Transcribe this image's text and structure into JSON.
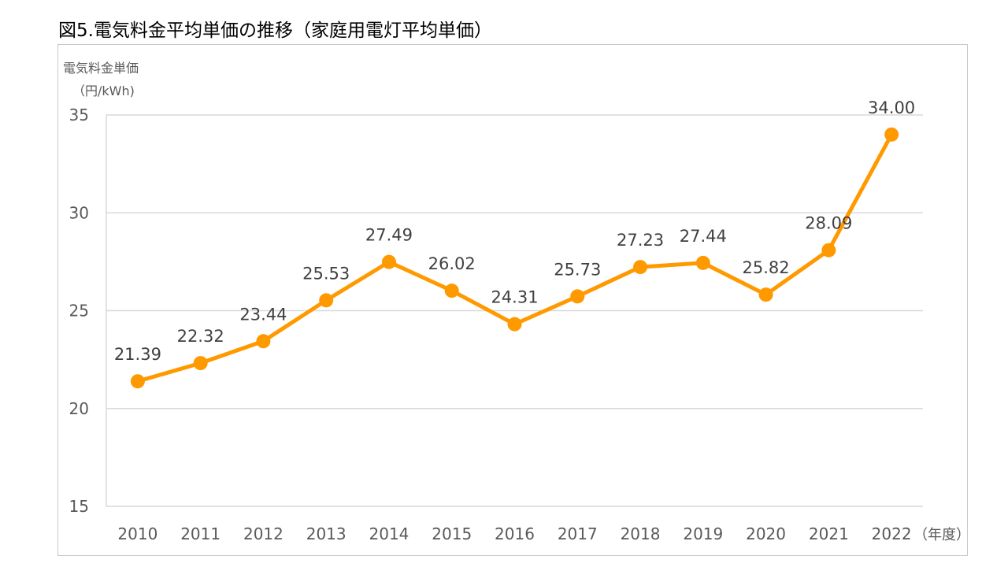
{
  "figure": {
    "title": "図5.電気料金平均単価の推移（家庭用電灯平均単価）"
  },
  "chart_data": {
    "type": "line",
    "title": "図5.電気料金平均単価の推移（家庭用電灯平均単価）",
    "ylabel_line1": "電気料金単価",
    "ylabel_line2": "（円/kWh)",
    "xlabel": "（年度）",
    "ylim": [
      15,
      35
    ],
    "yticks": [
      15,
      20,
      25,
      30,
      35
    ],
    "grid": true,
    "legend": "none",
    "color": "#FF9900",
    "categories": [
      "2010",
      "2011",
      "2012",
      "2013",
      "2014",
      "2015",
      "2016",
      "2017",
      "2018",
      "2019",
      "2020",
      "2021",
      "2022"
    ],
    "series": [
      {
        "values": [
          21.39,
          22.32,
          23.44,
          25.53,
          27.49,
          26.02,
          24.31,
          25.73,
          27.23,
          27.44,
          25.82,
          28.09,
          34.0
        ],
        "labels": [
          "21.39",
          "22.32",
          "23.44",
          "25.53",
          "27.49",
          "26.02",
          "24.31",
          "25.73",
          "27.23",
          "27.44",
          "25.82",
          "28.09",
          "34.00"
        ]
      }
    ]
  }
}
